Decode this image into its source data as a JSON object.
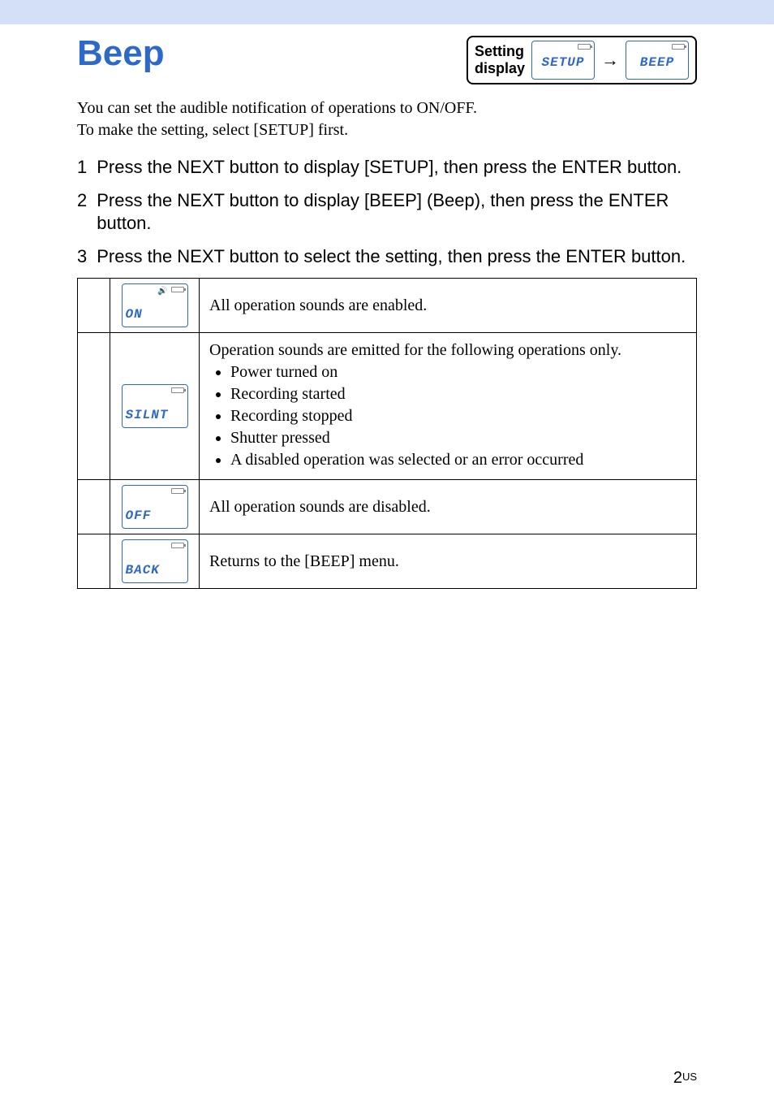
{
  "colors": {
    "band_bg": "#d3e0f7",
    "title_color": "#2f69c8",
    "lcd_border": "#2f69c8",
    "text": "#000000",
    "page_bg": "#ffffff"
  },
  "title": "Beep",
  "setting_display": {
    "label_line1": "Setting",
    "label_line2": "display",
    "lcd1_text": "SETUP",
    "arrow": "→",
    "lcd2_text": "BEEP"
  },
  "intro_lines": [
    "You can set the audible notification of operations to ON/OFF.",
    "To make the setting, select [SETUP] first."
  ],
  "steps": [
    {
      "num": "1",
      "text": "Press the NEXT button to display [SETUP], then press the ENTER button."
    },
    {
      "num": "2",
      "text": "Press the NEXT button to display [BEEP] (Beep), then press the ENTER button."
    },
    {
      "num": "3",
      "text": "Press the NEXT button to select the setting, then press the ENTER button."
    }
  ],
  "options": [
    {
      "default_mark": "✓",
      "lcd_text": "ON",
      "has_sound_icon": true,
      "description_intro": "",
      "description": "All operation sounds are enabled.",
      "bullets": []
    },
    {
      "default_mark": "",
      "lcd_text": "SILNT",
      "has_sound_icon": false,
      "description_intro": "Operation sounds are emitted for the following operations only.",
      "description": "",
      "bullets": [
        "Power turned on",
        "Recording started",
        "Recording stopped",
        "Shutter pressed",
        "A disabled operation was selected or an error occurred"
      ]
    },
    {
      "default_mark": "",
      "lcd_text": "OFF",
      "has_sound_icon": false,
      "description_intro": "",
      "description": "All operation sounds are disabled.",
      "bullets": []
    },
    {
      "default_mark": "",
      "lcd_text": "BACK",
      "has_sound_icon": false,
      "description_intro": "",
      "description": "Returns to the [BEEP] menu.",
      "bullets": []
    }
  ],
  "page_number": {
    "num": "2",
    "region": "US"
  }
}
